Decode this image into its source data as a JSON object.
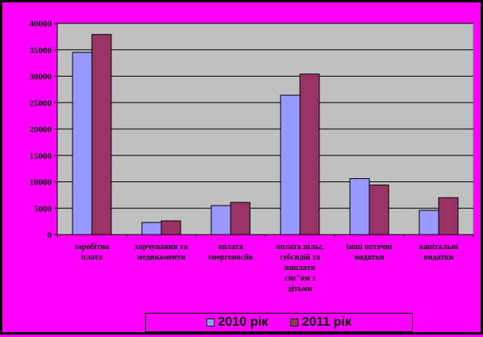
{
  "chart_data": {
    "type": "bar",
    "title": "",
    "xlabel": "",
    "ylabel": "",
    "ylim": [
      0,
      40000
    ],
    "yticks": [
      0,
      5000,
      10000,
      15000,
      20000,
      25000,
      30000,
      35000,
      40000
    ],
    "grid": true,
    "legend_position": "bottom",
    "categories": [
      "заробітна плата",
      "харчування та медикаменти",
      "оплата енергоносіїв",
      "оплата пільг, субсидій та виплати сім\"ям з дітьми",
      "інші поточні видатки",
      "капітальні видатки"
    ],
    "category_lines": [
      [
        "заробітна",
        "плата"
      ],
      [
        "харчування та",
        "медикаменти"
      ],
      [
        "оплата",
        "енергоносіїв"
      ],
      [
        "оплата пільг,",
        "субсидій та",
        "виплати",
        "сім\"ям з",
        "дітьми"
      ],
      [
        "інші поточні",
        "видатки"
      ],
      [
        "капітальні",
        "видатки"
      ]
    ],
    "series": [
      {
        "name": "2010 рік",
        "color": "#9999ff",
        "values": [
          34500,
          2300,
          5500,
          26400,
          10600,
          4600
        ]
      },
      {
        "name": "2011 рік",
        "color": "#993366",
        "values": [
          37900,
          2600,
          6100,
          30400,
          9400,
          7000
        ]
      }
    ],
    "colors": {
      "page_background": "#ff00ff",
      "plot_background": "#c0c0c0"
    }
  }
}
